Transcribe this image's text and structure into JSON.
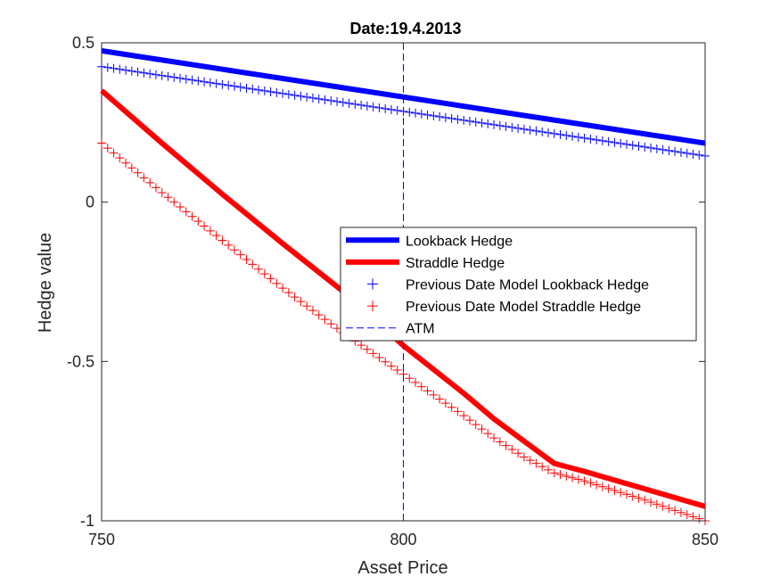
{
  "chart_data": {
    "type": "line",
    "title": "Date:19.4.2013",
    "xlabel": "Asset Price",
    "ylabel": "Hedge value",
    "xlim": [
      750,
      850
    ],
    "ylim": [
      -1,
      0.5
    ],
    "xticks": [
      750,
      800,
      850
    ],
    "yticks": [
      -1,
      -0.5,
      0,
      0.5
    ],
    "xtick_labels": [
      "750",
      "800",
      "850"
    ],
    "ytick_labels": [
      "-1",
      "-0.5",
      "0",
      "0.5"
    ],
    "grid": false,
    "legend_position": "center-right",
    "series": [
      {
        "name": "Lookback Hedge",
        "style": "solid-thick",
        "color": "#0000ff",
        "x": [
          750,
          850
        ],
        "y": [
          0.475,
          0.185
        ]
      },
      {
        "name": "Straddle Hedge",
        "style": "solid-thick",
        "color": "#ff0000",
        "x": [
          750,
          760,
          770,
          780,
          790,
          800,
          810,
          815,
          820,
          825,
          830,
          840,
          850
        ],
        "y": [
          0.35,
          0.185,
          0.025,
          -0.13,
          -0.28,
          -0.45,
          -0.6,
          -0.68,
          -0.75,
          -0.82,
          -0.845,
          -0.9,
          -0.955
        ]
      },
      {
        "name": "Previous Date Model Lookback Hedge",
        "style": "marker-plus",
        "color": "#0000ff",
        "x": [
          750,
          850
        ],
        "y": [
          0.425,
          0.145
        ]
      },
      {
        "name": "Previous Date Model Straddle Hedge",
        "style": "marker-plus",
        "color": "#ff0000",
        "x": [
          750,
          760,
          770,
          780,
          790,
          800,
          810,
          815,
          820,
          825,
          830,
          840,
          850
        ],
        "y": [
          0.185,
          0.03,
          -0.12,
          -0.27,
          -0.41,
          -0.54,
          -0.67,
          -0.74,
          -0.8,
          -0.85,
          -0.875,
          -0.935,
          -1.0
        ]
      },
      {
        "name": "ATM",
        "style": "dashed-vertical",
        "color": "#0000ff",
        "x": [
          800,
          800
        ],
        "y": [
          -1,
          0.5
        ]
      }
    ]
  }
}
